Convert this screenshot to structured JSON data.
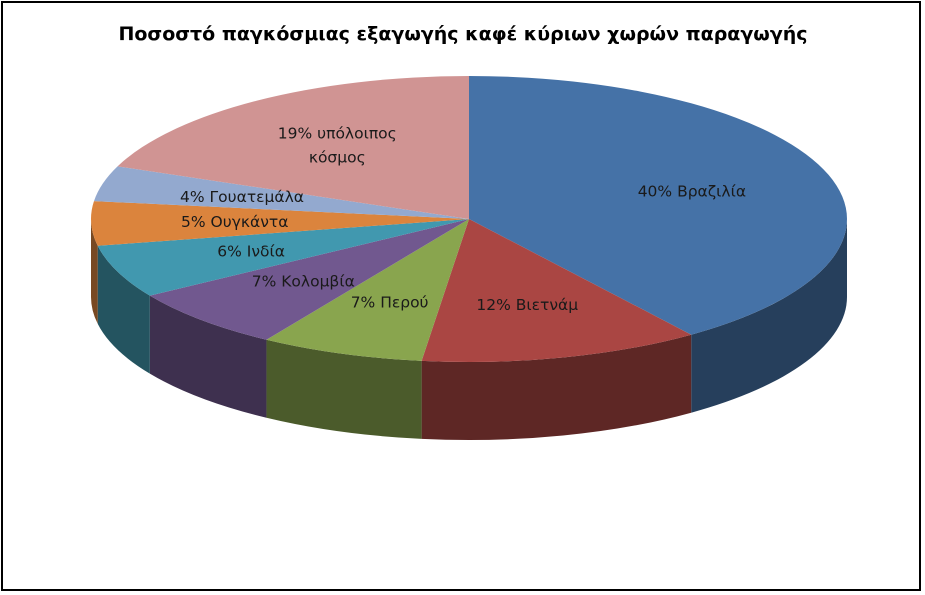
{
  "chart_data": {
    "type": "pie",
    "style": "3d",
    "title": "Ποσοστό παγκόσμιας εξαγωγής καφέ κύριων χωρών παραγωγής",
    "slices": [
      {
        "category": "Βραζιλία",
        "value": 40,
        "label": [
          "40% Βραζιλία"
        ],
        "color": "#4572A7"
      },
      {
        "category": "Βιετνάμ",
        "value": 12,
        "label": [
          "12% Βιετνάμ"
        ],
        "color": "#AA4643"
      },
      {
        "category": "Περού",
        "value": 7,
        "label": [
          "7% Περού"
        ],
        "color": "#89A54E"
      },
      {
        "category": "Κολομβία",
        "value": 7,
        "label": [
          "7% Κολομβία"
        ],
        "color": "#71588F"
      },
      {
        "category": "Ινδία",
        "value": 6,
        "label": [
          "6% Ινδία"
        ],
        "color": "#4198AF"
      },
      {
        "category": "Ουγκάντα",
        "value": 5,
        "label": [
          "5% Ουγκάντα"
        ],
        "color": "#DB843D"
      },
      {
        "category": "Γουατεμάλα",
        "value": 4,
        "label": [
          "4% Γουατεμάλα"
        ],
        "color": "#93A9CF"
      },
      {
        "category": "υπόλοιπος κόσμος",
        "value": 19,
        "label": [
          "19% υπόλοιπος",
          "κόσμος"
        ],
        "color": "#D09493"
      }
    ]
  }
}
